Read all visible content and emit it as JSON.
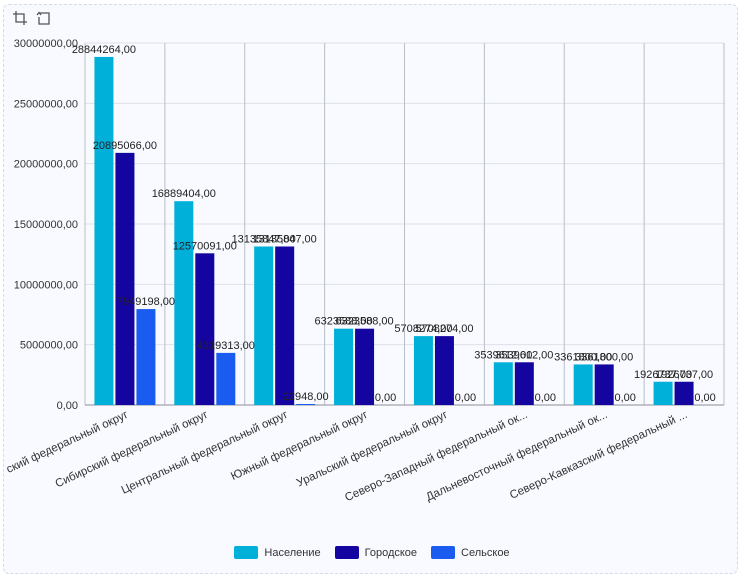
{
  "toolbar": {
    "icons": [
      "crop-icon",
      "restore-icon"
    ]
  },
  "chart_data": {
    "type": "bar",
    "title": "",
    "ylim": [
      0,
      30000000
    ],
    "yticks": [
      "0,00",
      "5000000,00",
      "10000000,00",
      "15000000,00",
      "20000000,00",
      "25000000,00",
      "30000000,00"
    ],
    "categories": [
      "Приволжский федеральный округ",
      "Сибирский федеральный округ",
      "Центральный федеральный округ",
      "Южный федеральный округ",
      "Уральский федеральный округ",
      "Северо-Западный федеральный ок...",
      "Дальневосточный федеральный ок...",
      "Северо-Кавказский федеральный ..."
    ],
    "category_labels_visible": [
      "ский федеральный округ",
      "Сибирский федеральный округ",
      "Центральный федеральный округ",
      "Южный федеральный округ",
      "Уральский федеральный округ",
      "Северо-Западный федеральный ок...",
      "Дальневосточный федеральный ок...",
      "Северо-Кавказский федеральный ..."
    ],
    "series": [
      {
        "name": "Население",
        "color": "#00b0d8",
        "values": [
          28844264,
          16889404,
          13135847,
          6323588,
          5708274,
          3539612,
          3361800,
          1926737
        ],
        "labels": [
          "28844264,00",
          "16889404,00",
          "13135847,00",
          "6323588,00",
          "5708274,00",
          "3539612,00",
          "3361800,00",
          "1926737,00"
        ]
      },
      {
        "name": "Городское",
        "color": "#1404a0",
        "values": [
          20895066,
          12570091,
          13135847,
          6323588,
          5708274,
          3539612,
          3361800,
          1926737
        ],
        "labels": [
          "20895066,00",
          "12570091,00",
          "13135847,00",
          "6323588,00",
          "5708274,00",
          "3539612,00",
          "3361800,00",
          "1926737,00"
        ]
      },
      {
        "name": "Сельское",
        "color": "#1a5cf0",
        "values": [
          7949198,
          4319313,
          22948,
          0,
          0,
          0,
          0,
          0
        ],
        "labels": [
          "7949198,00",
          "4319313,00",
          "22948,00",
          "0,00",
          "0,00",
          "0,00",
          "0,00",
          "0,00"
        ]
      }
    ],
    "grid": true,
    "legend": "bottom-center"
  }
}
